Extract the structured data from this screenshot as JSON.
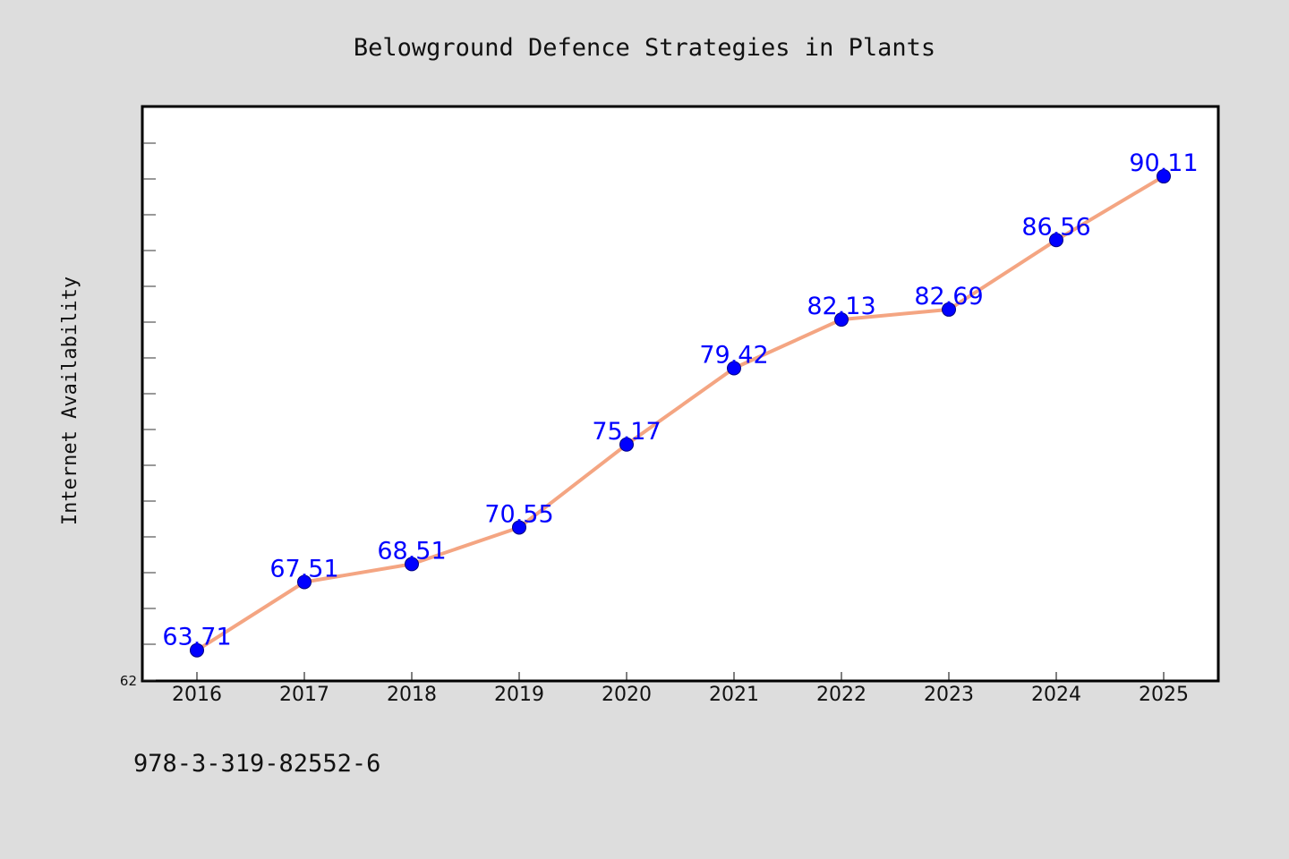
{
  "chart_data": {
    "type": "line",
    "title": "Belowground Defence Strategies in Plants",
    "xlabel": "",
    "ylabel": "Internet Availability",
    "categories": [
      "2016",
      "2017",
      "2018",
      "2019",
      "2020",
      "2021",
      "2022",
      "2023",
      "2024",
      "2025"
    ],
    "series": [
      {
        "values": [
          63.71,
          67.51,
          68.51,
          70.55,
          75.17,
          79.42,
          82.13,
          82.69,
          86.56,
          90.11
        ]
      }
    ],
    "data_labels": [
      "63.71",
      "67.51",
      "68.51",
      "70.55",
      "75.17",
      "79.42",
      "82.13",
      "82.69",
      "86.56",
      "90.11"
    ],
    "y_tick_labels": [
      "62"
    ],
    "ylim": [
      62,
      94
    ],
    "grid": false,
    "legend": "none",
    "colors": {
      "background": "#dddddd",
      "plot_background": "#ffffff",
      "line": "#f4a582",
      "marker": "#0000ff",
      "data_label": "#0000ff",
      "axis": "#000000"
    }
  },
  "footer": {
    "isbn": "978-3-319-82552-6"
  }
}
